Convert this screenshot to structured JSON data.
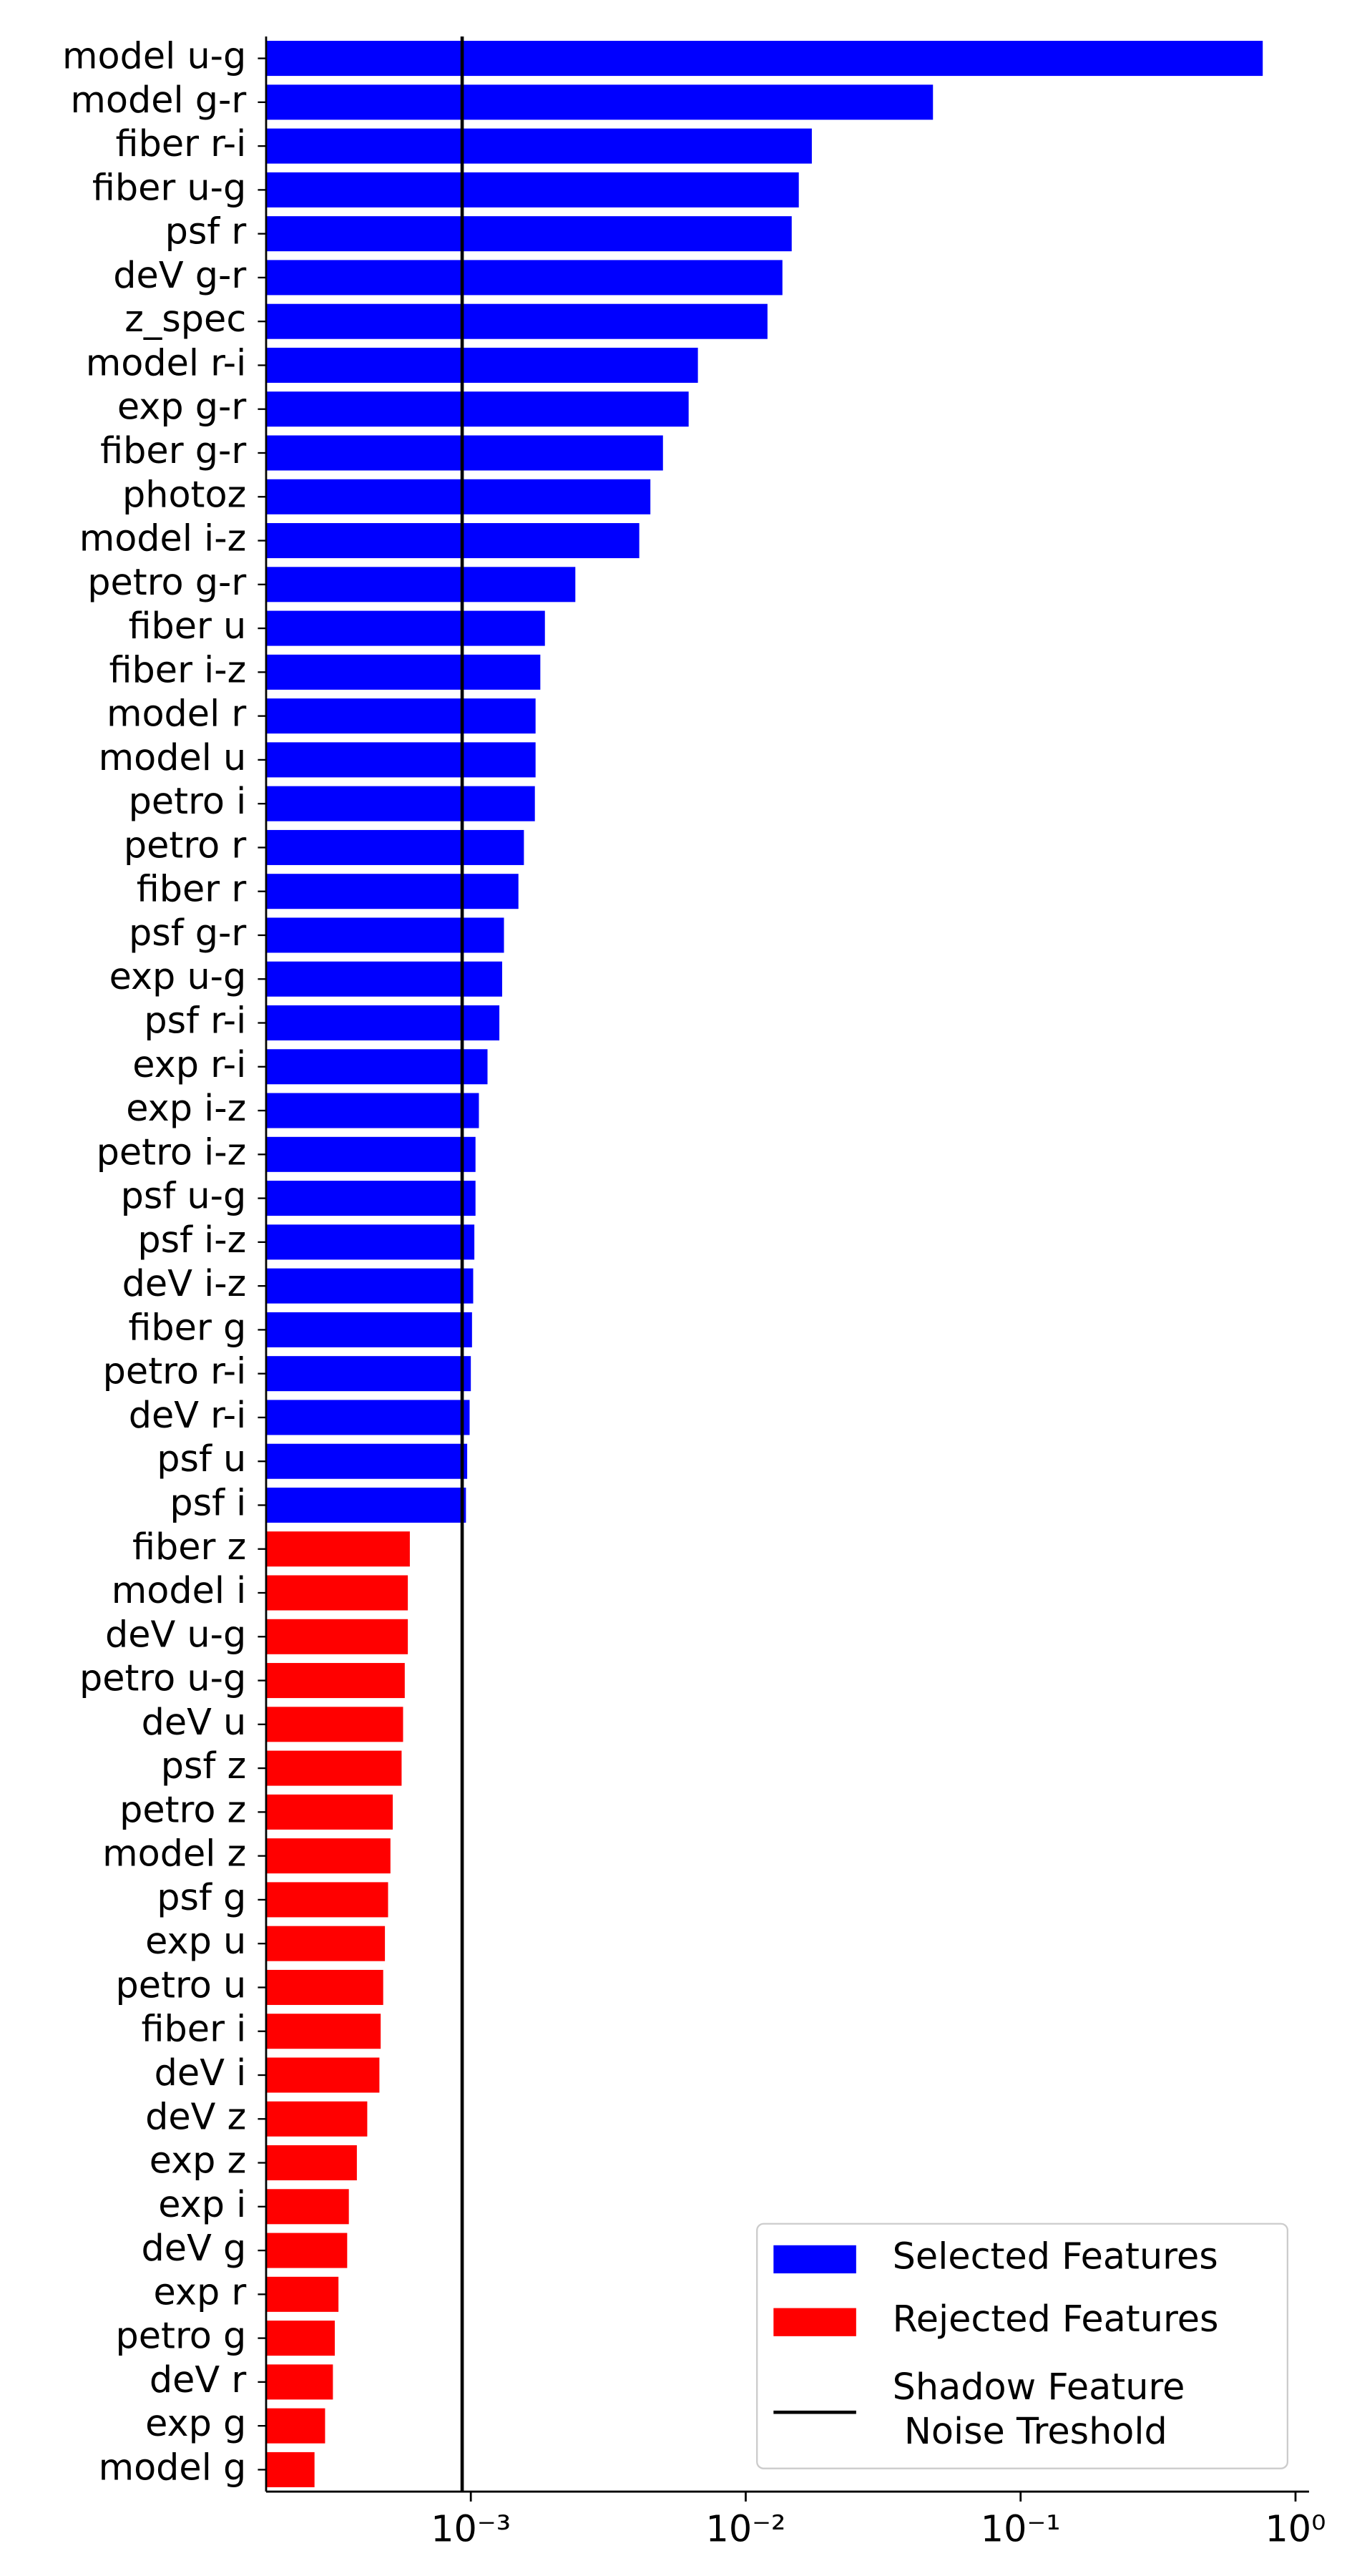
{
  "chart_data": {
    "type": "barh",
    "categories": [
      "model u-g",
      "model g-r",
      "fiber r-i",
      "fiber u-g",
      "psf r",
      "deV g-r",
      "z_spec",
      "model r-i",
      "exp g-r",
      "fiber g-r",
      "photoz",
      "model i-z",
      "petro g-r",
      "fiber u",
      "fiber i-z",
      "model r",
      "model u",
      "petro i",
      "petro r",
      "fiber r",
      "psf g-r",
      "exp u-g",
      "psf r-i",
      "exp r-i",
      "exp i-z",
      "petro i-z",
      "psf u-g",
      "psf i-z",
      "deV i-z",
      "fiber g",
      "petro r-i",
      "deV r-i",
      "psf u",
      "psf i",
      "fiber z",
      "model i",
      "deV u-g",
      "petro u-g",
      "deV u",
      "psf z",
      "petro z",
      "model z",
      "psf g",
      "exp u",
      "petro u",
      "fiber i",
      "deV i",
      "deV z",
      "exp z",
      "exp i",
      "deV g",
      "exp r",
      "petro g",
      "deV r",
      "exp g",
      "model g"
    ],
    "series": [
      {
        "name": "Selected Features",
        "color": "#0000ff",
        "values": [
          0.76,
          0.048,
          0.0174,
          0.0156,
          0.0147,
          0.0136,
          0.012,
          0.0067,
          0.0062,
          0.005,
          0.0045,
          0.0041,
          0.0024,
          0.00186,
          0.00179,
          0.00172,
          0.00172,
          0.00171,
          0.00156,
          0.00149,
          0.00132,
          0.0013,
          0.00127,
          0.00115,
          0.00107,
          0.00104,
          0.00104,
          0.00103,
          0.00102,
          0.00101,
          0.001,
          0.00099,
          0.00097,
          0.00096,
          null,
          null,
          null,
          null,
          null,
          null,
          null,
          null,
          null,
          null,
          null,
          null,
          null,
          null,
          null,
          null,
          null,
          null,
          null,
          null,
          null,
          null
        ]
      },
      {
        "name": "Rejected Features",
        "color": "#ff0000",
        "values": [
          null,
          null,
          null,
          null,
          null,
          null,
          null,
          null,
          null,
          null,
          null,
          null,
          null,
          null,
          null,
          null,
          null,
          null,
          null,
          null,
          null,
          null,
          null,
          null,
          null,
          null,
          null,
          null,
          null,
          null,
          null,
          null,
          null,
          null,
          0.0006,
          0.00059,
          0.00059,
          0.000575,
          0.000567,
          0.00056,
          0.00052,
          0.00051,
          0.0005,
          0.000487,
          0.00048,
          0.00047,
          0.000465,
          0.00042,
          0.000385,
          0.00036,
          0.000355,
          0.00033,
          0.00032,
          0.000315,
          0.000295,
          0.00027
        ]
      }
    ],
    "threshold": {
      "name": "Shadow Feature\n Noise Treshold",
      "value": 0.00093,
      "color": "#000000"
    },
    "xlim": [
      0.00018,
      1.12
    ],
    "xscale": "log",
    "xticks": [
      {
        "value": 0.001,
        "label": "10⁻³"
      },
      {
        "value": 0.01,
        "label": "10⁻²"
      },
      {
        "value": 0.1,
        "label": "10⁻¹"
      },
      {
        "value": 1,
        "label": "10⁰"
      }
    ],
    "legend": "lower right"
  }
}
